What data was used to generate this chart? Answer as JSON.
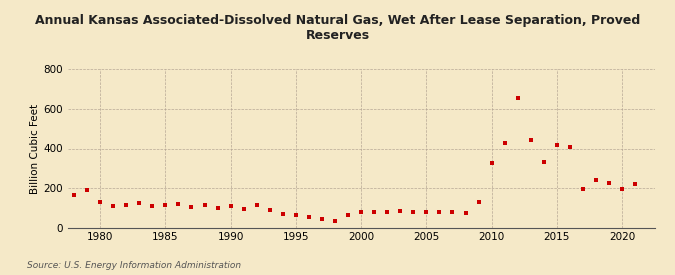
{
  "title": "Annual Kansas Associated-Dissolved Natural Gas, Wet After Lease Separation, Proved\nReserves",
  "ylabel": "Billion Cubic Feet",
  "source": "Source: U.S. Energy Information Administration",
  "background_color": "#f5e9c8",
  "plot_bg_color": "#f5e9c8",
  "marker_color": "#cc0000",
  "marker": "s",
  "markersize": 3.5,
  "ylim": [
    0,
    800
  ],
  "yticks": [
    0,
    200,
    400,
    600,
    800
  ],
  "xlim": [
    1977.5,
    2022.5
  ],
  "xticks": [
    1980,
    1985,
    1990,
    1995,
    2000,
    2005,
    2010,
    2015,
    2020
  ],
  "years": [
    1978,
    1979,
    1980,
    1981,
    1982,
    1983,
    1984,
    1985,
    1986,
    1987,
    1988,
    1989,
    1990,
    1991,
    1992,
    1993,
    1994,
    1995,
    1996,
    1997,
    1998,
    1999,
    2000,
    2001,
    2002,
    2003,
    2004,
    2005,
    2006,
    2007,
    2008,
    2009,
    2010,
    2011,
    2012,
    2013,
    2014,
    2015,
    2016,
    2017,
    2018,
    2019,
    2020,
    2021
  ],
  "values": [
    165,
    190,
    130,
    110,
    115,
    125,
    110,
    115,
    120,
    105,
    115,
    100,
    110,
    95,
    115,
    90,
    70,
    65,
    55,
    45,
    35,
    65,
    80,
    80,
    80,
    85,
    80,
    80,
    80,
    80,
    75,
    130,
    325,
    430,
    655,
    445,
    330,
    420,
    410,
    195,
    240,
    225,
    195,
    220
  ]
}
